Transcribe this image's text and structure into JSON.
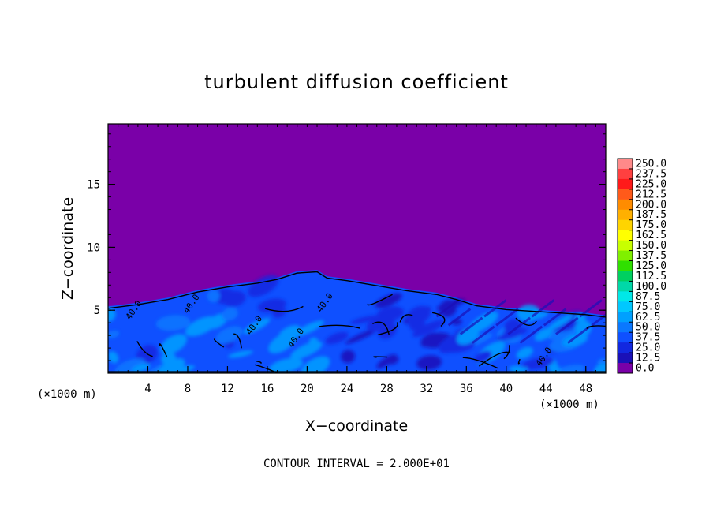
{
  "chart_data": {
    "type": "heatmap",
    "title": "turbulent diffusion coefficient",
    "xlabel": "X−coordinate",
    "ylabel": "Z−coordinate",
    "x_unit_left": "(×1000 m)",
    "x_unit_right": "(×1000 m)",
    "xlim": [
      0,
      50
    ],
    "ylim": [
      0,
      19.8
    ],
    "xticks": [
      4,
      8,
      12,
      16,
      20,
      24,
      28,
      32,
      36,
      40,
      44,
      48
    ],
    "yticks": [
      5,
      10,
      15
    ],
    "background_value": 0.0,
    "turbulent_layer_top": {
      "x": [
        0,
        3,
        6,
        9,
        12,
        15,
        17,
        19,
        21,
        22,
        24,
        27,
        30,
        33,
        35,
        37,
        40,
        44,
        48,
        50
      ],
      "z": [
        5.3,
        5.6,
        6.0,
        6.6,
        7.0,
        7.3,
        7.6,
        8.1,
        8.2,
        7.7,
        7.5,
        7.1,
        6.7,
        6.4,
        6.0,
        5.5,
        5.2,
        5.0,
        4.8,
        4.6
      ]
    },
    "contour_labels": [
      {
        "x": 2.2,
        "z": 4.2,
        "text": "40.0"
      },
      {
        "x": 8.0,
        "z": 4.7,
        "text": "40.0"
      },
      {
        "x": 14.3,
        "z": 3.0,
        "text": "40.0"
      },
      {
        "x": 18.5,
        "z": 2.0,
        "text": "40.0"
      },
      {
        "x": 21.4,
        "z": 4.8,
        "text": "40.0"
      },
      {
        "x": 43.4,
        "z": 0.5,
        "text": "40.0"
      }
    ],
    "colorbar": {
      "labels": [
        "250.0",
        "237.5",
        "225.0",
        "212.5",
        "200.0",
        "187.5",
        "175.0",
        "162.5",
        "150.0",
        "137.5",
        "125.0",
        "112.5",
        "100.0",
        "87.5",
        "75.0",
        "62.5",
        "50.0",
        "37.5",
        "25.0",
        "12.5",
        "0.0"
      ],
      "colors": [
        "#ff8a8a",
        "#ff4040",
        "#ff1a1a",
        "#ff5a1a",
        "#ff8c00",
        "#ffb000",
        "#ffd400",
        "#ffff00",
        "#c8ff00",
        "#80f000",
        "#30e000",
        "#00d060",
        "#00d8a8",
        "#00e8e8",
        "#00c8ff",
        "#00a0ff",
        "#0a78ff",
        "#0f50ff",
        "#1228e0",
        "#1a10b8",
        "#7a00a8"
      ]
    },
    "footnote": "CONTOUR INTERVAL = 2.000E+01"
  }
}
